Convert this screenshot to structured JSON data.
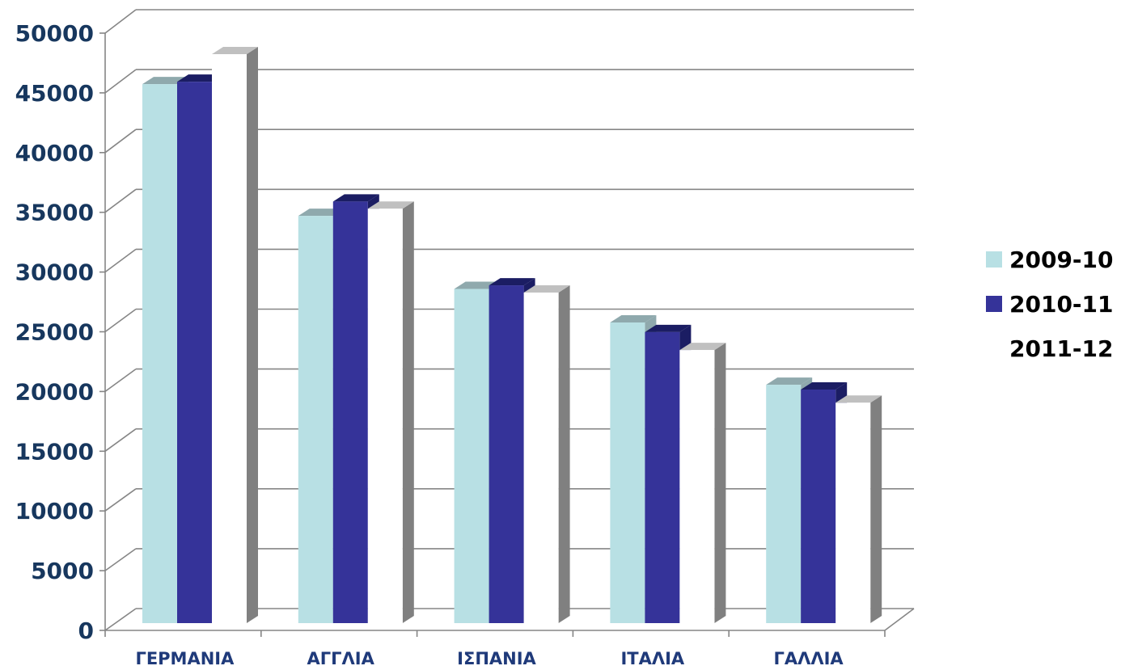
{
  "chart_data": {
    "type": "bar",
    "title": "",
    "xlabel": "",
    "ylabel": "",
    "ylim": [
      0,
      50000
    ],
    "yticks": [
      "0",
      "5000",
      "10000",
      "15000",
      "20000",
      "25000",
      "30000",
      "35000",
      "40000",
      "45000",
      "50000"
    ],
    "categories": [
      "ΓΕΡΜΑΝΙΑ",
      "ΑΓΓΛΙΑ",
      "ΙΣΠΑΝΙΑ",
      "ΙΤΑΛΙΑ",
      "ΓΑΛΛΙΑ"
    ],
    "series": [
      {
        "name": "2009-10",
        "color": "#b8e0e4",
        "values": [
          45000,
          34000,
          27900,
          25100,
          19900
        ]
      },
      {
        "name": "2010-11",
        "color": "#353399",
        "values": [
          45200,
          35200,
          28200,
          24300,
          19500
        ]
      },
      {
        "name": "2011-12",
        "color": "#ffffff",
        "values": [
          47500,
          34600,
          27600,
          22800,
          18400
        ]
      }
    ],
    "grid": true,
    "legend": "right",
    "style": "3d-clustered-column"
  }
}
